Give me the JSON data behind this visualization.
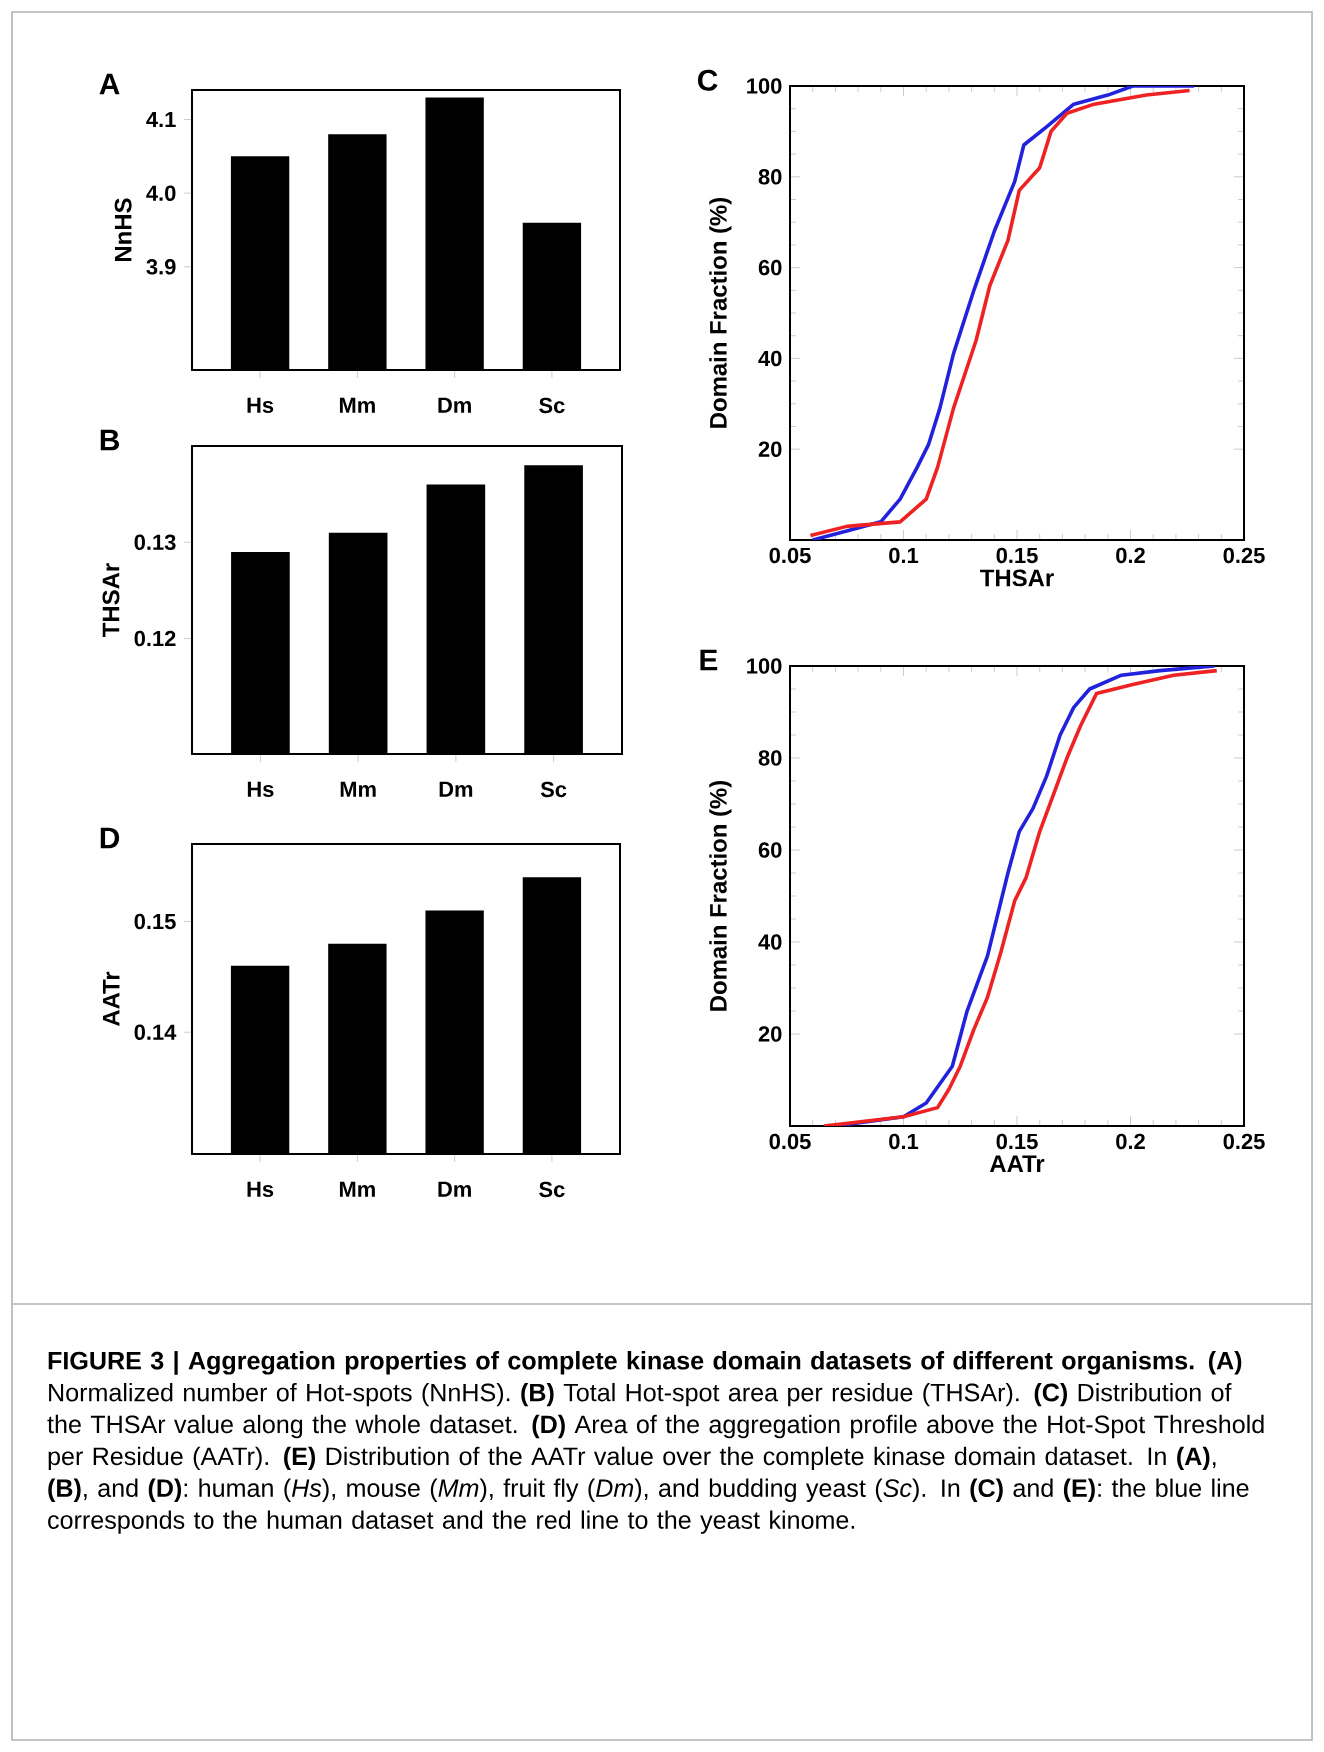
{
  "chart_data": [
    {
      "type": "bar",
      "title": "A",
      "ylabel": "NnHS",
      "categories": [
        "Hs",
        "Mm",
        "Dm",
        "Sc"
      ],
      "values": [
        4.05,
        4.08,
        4.13,
        3.96
      ],
      "color": "#000000",
      "ylim": [
        3.76,
        4.14
      ],
      "yticks": [
        3.9,
        {
          "value": 4.0,
          "label": "4.0"
        },
        4.1
      ]
    },
    {
      "type": "bar",
      "title": "B",
      "ylabel": "THSAr",
      "categories": [
        "Hs",
        "Mm",
        "Dm",
        "Sc"
      ],
      "values": [
        0.129,
        0.131,
        0.136,
        0.138
      ],
      "color": "#000000",
      "ylim": [
        0.108,
        0.14
      ],
      "yticks": [
        0.12,
        0.13
      ]
    },
    {
      "type": "line",
      "title": "C",
      "xlabel": "THSAr",
      "ylabel": "Domain Fraction (%)",
      "xlim": [
        0.05,
        0.25
      ],
      "xticks": [
        0.05,
        0.1,
        0.15,
        0.2,
        0.25
      ],
      "ylim": [
        0,
        100
      ],
      "yticks": [
        20,
        40,
        60,
        80,
        100
      ],
      "series": [
        {
          "color": "#2222dd",
          "x": [
            0.06,
            0.075,
            0.09,
            0.0985,
            0.106,
            0.111,
            0.116,
            0.122,
            0.131,
            0.14,
            0.149,
            0.153,
            0.163,
            0.175,
            0.19,
            0.201,
            0.228
          ],
          "values": [
            0,
            2,
            4,
            9,
            16,
            21,
            29,
            41,
            55,
            68,
            79,
            87,
            91,
            96,
            98,
            100,
            100
          ]
        },
        {
          "color": "#ee2222",
          "x": [
            0.059,
            0.075,
            0.0985,
            0.11,
            0.115,
            0.122,
            0.128,
            0.132,
            0.138,
            0.146,
            0.151,
            0.16,
            0.165,
            0.172,
            0.184,
            0.207,
            0.226
          ],
          "values": [
            1,
            3,
            4,
            9,
            16,
            29,
            38,
            44,
            56,
            66,
            77,
            82,
            90,
            94,
            96,
            98,
            99
          ]
        }
      ]
    },
    {
      "type": "bar",
      "title": "D",
      "ylabel": "AATr",
      "categories": [
        "Hs",
        "Mm",
        "Dm",
        "Sc"
      ],
      "values": [
        0.146,
        0.148,
        0.151,
        0.154
      ],
      "color": "#000000",
      "ylim": [
        0.129,
        0.157
      ],
      "yticks": [
        0.14,
        0.15
      ]
    },
    {
      "type": "line",
      "title": "E",
      "xlabel": "AATr",
      "ylabel": "Domain Fraction (%)",
      "xlim": [
        0.05,
        0.25
      ],
      "xticks": [
        0.05,
        0.1,
        0.15,
        0.2,
        0.25
      ],
      "ylim": [
        0,
        100
      ],
      "yticks": [
        20,
        40,
        60,
        80,
        100
      ],
      "series": [
        {
          "color": "#2222dd",
          "x": [
            0.07,
            0.1,
            0.11,
            0.1215,
            0.128,
            0.137,
            0.146,
            0.151,
            0.157,
            0.163,
            0.169,
            0.175,
            0.182,
            0.196,
            0.213,
            0.237
          ],
          "values": [
            0,
            2,
            5,
            13,
            25,
            37,
            55,
            64,
            69,
            76,
            85,
            91,
            95,
            98,
            99,
            100
          ]
        },
        {
          "color": "#ee2222",
          "x": [
            0.065,
            0.1,
            0.115,
            0.12,
            0.125,
            0.131,
            0.137,
            0.143,
            0.149,
            0.154,
            0.16,
            0.166,
            0.172,
            0.178,
            0.185,
            0.201,
            0.219,
            0.238
          ],
          "values": [
            0,
            2,
            4,
            8,
            13,
            21,
            28,
            38,
            49,
            54,
            64,
            72,
            80,
            87,
            94,
            96,
            98,
            99
          ]
        }
      ],
      "annotations": [
        "**FIGURE 3 | Aggregation properties of complete kinase domain datasets of different organisms. (A)** Normalized number of Hot-spots (NnHS). **(B)** Total Hot-spot area per residue (THSAr). **(C)** Distribution of the THSAr value along the whole dataset. **(D)** Area of the aggregation profile above the Hot-Spot Threshold per Residue (AATr). **(E)** Distribution of the AATr value over the complete kinase domain dataset. In **(A)**, **(B)**, and **(D)**: human (*Hs*), mouse (*Mm*), fruit fly (*Dm*), and budding yeast (*Sc*). In **(C)** and **(E)**: the blue line corresponds to the human dataset and the red line to the yeast kinome."
      ]
    }
  ]
}
